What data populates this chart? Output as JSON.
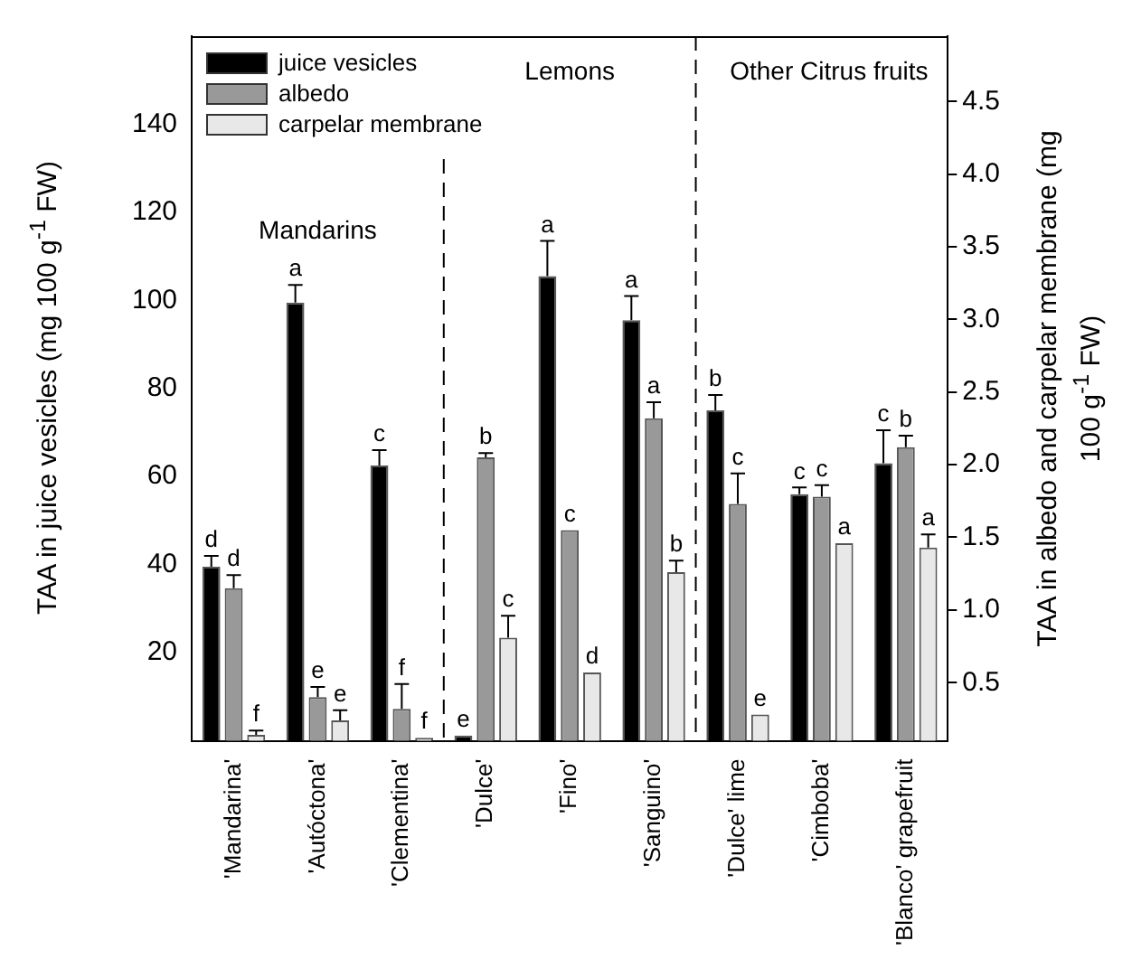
{
  "chart_data": {
    "type": "bar",
    "ylabel": "TAA in juice vesicles (mg 100 g$^{-1}$ FW)",
    "y2label": "TAA in albedo and carpelar membrane (mg 100 g$^{-1}$ FW)",
    "categories": [
      "'Mandarina'",
      "'Autóctona'",
      "'Clementina'",
      "'Dulce'",
      "'Fino'",
      "'Sanguino'",
      "'Dulce' lime",
      "'Cimboba'",
      "'Blanco' grapefruit"
    ],
    "series": [
      {
        "name": "juice vesicles",
        "color": "#000000",
        "values": [
          39.5,
          99.5,
          62.5,
          1.2,
          105.5,
          95.5,
          75,
          56,
          63
        ],
        "errors": [
          [
            39.5,
            42
          ],
          [
            99.5,
            103.5
          ],
          [
            62.5,
            66
          ],
          null,
          [
            105.5,
            113.5
          ],
          [
            95.5,
            101
          ],
          [
            75,
            78.5
          ],
          [
            56,
            57.5
          ],
          [
            63,
            70.5
          ]
        ],
        "value_labels": [
          "d",
          "a",
          "c",
          "e",
          "a",
          "a",
          "b",
          "c",
          "c"
        ]
      },
      {
        "name": "albedo",
        "color": "#999999",
        "axis": "y2",
        "values": [
          1.15,
          0.4,
          0.32,
          2.05,
          1.55,
          2.32,
          1.73,
          1.78,
          2.12
        ],
        "errors": [
          [
            1.15,
            1.24
          ],
          [
            0.4,
            0.47
          ],
          [
            0.32,
            0.49
          ],
          [
            2.05,
            2.08
          ],
          null,
          [
            2.32,
            2.43
          ],
          [
            1.73,
            1.94
          ],
          [
            1.78,
            1.86
          ],
          [
            2.12,
            2.2
          ]
        ],
        "value_labels": [
          "d",
          "e",
          "f",
          "b",
          "c",
          "a",
          "c",
          "c",
          "b"
        ]
      },
      {
        "name": "carpelar membrane",
        "color": "#e8e8e8",
        "axis": "y2",
        "values": [
          0.14,
          0.24,
          0.12,
          0.81,
          0.57,
          1.26,
          0.28,
          1.46,
          1.43
        ],
        "errors": [
          [
            0.14,
            0.17
          ],
          [
            0.24,
            0.31
          ],
          null,
          [
            0.81,
            0.96
          ],
          null,
          [
            1.26,
            1.34
          ],
          null,
          null,
          [
            1.43,
            1.52
          ]
        ],
        "value_labels": [
          "f",
          "e",
          "f",
          "c",
          "d",
          "b",
          "e",
          "a",
          "a"
        ]
      }
    ],
    "ylim": [
      0,
      160
    ],
    "yticks": [
      20,
      40,
      60,
      80,
      100,
      120,
      140
    ],
    "y2lim": [
      0.1,
      4.95
    ],
    "y2ticks": [
      0.5,
      {
        "value": 1,
        "label": "1.0"
      },
      1.5,
      {
        "value": 2,
        "label": "2.0"
      },
      2.5,
      {
        "value": 3,
        "label": "3.0"
      },
      3.5,
      {
        "value": 4,
        "label": "4.0"
      },
      4.5
    ],
    "annotations": [
      "Mandarins",
      "Lemons",
      "Other Citrus fruits"
    ],
    "grid": false,
    "legend": "top left"
  }
}
